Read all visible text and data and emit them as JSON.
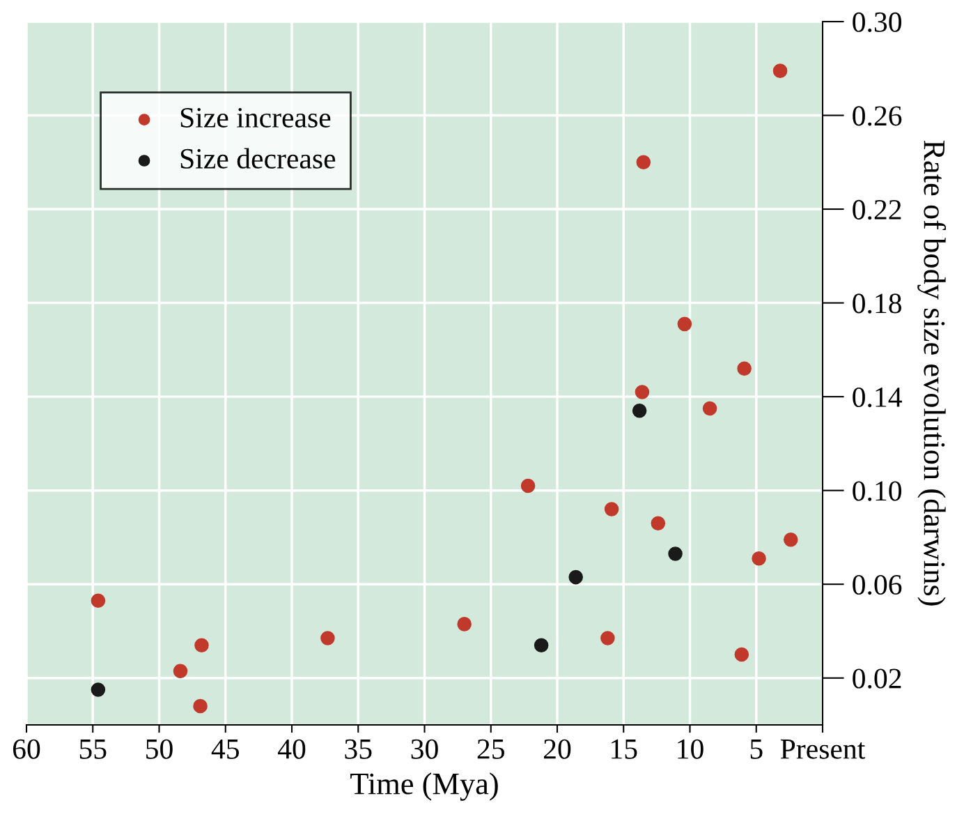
{
  "chart_data": {
    "type": "scatter",
    "xlabel": "Time (Mya)",
    "ylabel": "Rate of body size evolution (darwins)",
    "xlim": [
      60,
      0
    ],
    "xticks": [
      60,
      55,
      50,
      45,
      40,
      35,
      30,
      25,
      20,
      15,
      10,
      5,
      {
        "value": 0,
        "label": "Present"
      }
    ],
    "ylim": [
      0,
      0.3
    ],
    "yticks": [
      {
        "value": 0.02,
        "label": "0.02"
      },
      {
        "value": 0.06,
        "label": "0.06"
      },
      {
        "value": 0.1,
        "label": "0.10"
      },
      {
        "value": 0.14,
        "label": "0.14"
      },
      {
        "value": 0.18,
        "label": "0.18"
      },
      {
        "value": 0.22,
        "label": "0.22"
      },
      {
        "value": 0.26,
        "label": "0.26"
      },
      {
        "value": 0.3,
        "label": "0.30"
      }
    ],
    "grid": true,
    "legend": "top left",
    "marker": "circle",
    "series": [
      {
        "name": "Size increase",
        "color": "#c0392b",
        "x": [
          54.6,
          48.4,
          46.8,
          46.9,
          37.3,
          27.0,
          22.2,
          16.2,
          15.9,
          13.6,
          13.5,
          12.4,
          10.4,
          8.5,
          6.1,
          5.9,
          4.8,
          3.2,
          2.4
        ],
        "values": [
          0.053,
          0.023,
          0.034,
          0.008,
          0.037,
          0.043,
          0.102,
          0.037,
          0.092,
          0.142,
          0.24,
          0.086,
          0.171,
          0.135,
          0.03,
          0.152,
          0.071,
          0.279,
          0.079
        ]
      },
      {
        "name": "Size decrease",
        "color": "#1a1a1a",
        "x": [
          54.6,
          21.2,
          18.6,
          13.8,
          11.1
        ],
        "values": [
          0.015,
          0.034,
          0.063,
          0.134,
          0.073
        ]
      }
    ]
  }
}
